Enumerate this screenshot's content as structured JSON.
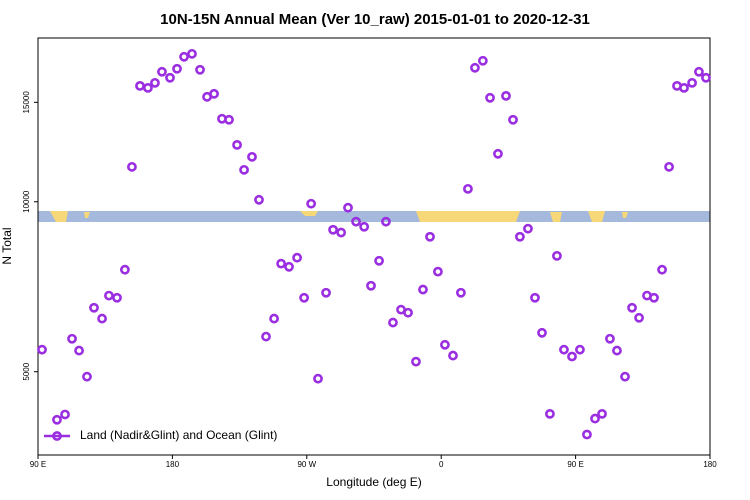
{
  "chart_data": {
    "type": "scatter",
    "title": "10N-15N Annual Mean (Ver 10_raw)   2015-01-01 to 2020-12-31",
    "xlabel": "Longitude (deg E)",
    "ylabel": "N Total",
    "log_y": true,
    "legend": "lower left",
    "xlim": [
      90,
      540
    ],
    "ylim": [
      3560,
      19500
    ],
    "xticks": [
      {
        "value": 90,
        "label": "90 E"
      },
      {
        "value": 180,
        "label": "180"
      },
      {
        "value": 270,
        "label": "90 W"
      },
      {
        "value": 360,
        "label": "0"
      },
      {
        "value": 450,
        "label": "90 E"
      },
      {
        "value": 540,
        "label": "180"
      }
    ],
    "yticks": [
      5000,
      10000,
      15000
    ],
    "series": [
      {
        "name": "Land (Nadir&Glint) and Ocean (Glint)",
        "color": "#9a2ee0",
        "x": [
          92.7,
          102.7,
          108.1,
          112.8,
          117.5,
          122.8,
          127.5,
          132.9,
          137.5,
          142.9,
          148.2,
          152.9,
          158.3,
          163.6,
          168.3,
          173.0,
          178.4,
          183.1,
          187.8,
          193.1,
          198.5,
          203.2,
          207.9,
          213.2,
          217.9,
          223.3,
          228.0,
          233.3,
          238.0,
          242.7,
          248.1,
          252.8,
          258.1,
          263.5,
          268.2,
          272.9,
          277.5,
          282.9,
          287.6,
          293.0,
          297.6,
          303.0,
          308.4,
          313.0,
          318.4,
          323.0,
          327.7,
          333.1,
          337.8,
          343.1,
          347.8,
          352.5,
          357.8,
          362.5,
          367.9,
          373.2,
          377.9,
          382.6,
          387.9,
          392.7,
          398.0,
          403.4,
          408.1,
          412.7,
          418.1,
          422.8,
          427.5,
          432.8,
          437.5,
          442.2,
          447.6,
          452.9,
          457.6,
          463.0,
          467.7,
          473.0,
          477.7,
          483.1,
          487.8,
          492.5,
          497.8,
          502.5,
          507.9,
          512.6,
          517.9,
          522.6,
          528.0,
          532.6,
          537.3
        ],
        "values": [
          5470,
          4110,
          4200,
          5720,
          5450,
          4900,
          6490,
          6210,
          6820,
          6760,
          7580,
          11530,
          16040,
          15910,
          16240,
          16990,
          16580,
          17200,
          18060,
          18280,
          17130,
          15340,
          15530,
          14030,
          13970,
          12610,
          11390,
          12010,
          10080,
          5770,
          6210,
          7770,
          7670,
          7960,
          6760,
          9920,
          4860,
          6900,
          8920,
          8820,
          9760,
          9220,
          9030,
          7100,
          7860,
          9220,
          6110,
          6440,
          6360,
          5210,
          6990,
          8670,
          7520,
          5580,
          5340,
          6900,
          10540,
          17270,
          17770,
          15280,
          12160,
          15400,
          13970,
          8670,
          8960,
          6760,
          5860,
          4210,
          8020,
          5470,
          5320,
          5470,
          3870,
          4130,
          4210,
          5720,
          5450,
          4900,
          6490,
          6230,
          6820,
          6760,
          7580,
          11530,
          16040,
          15910,
          16240,
          16990,
          16580
        ]
      }
    ]
  }
}
